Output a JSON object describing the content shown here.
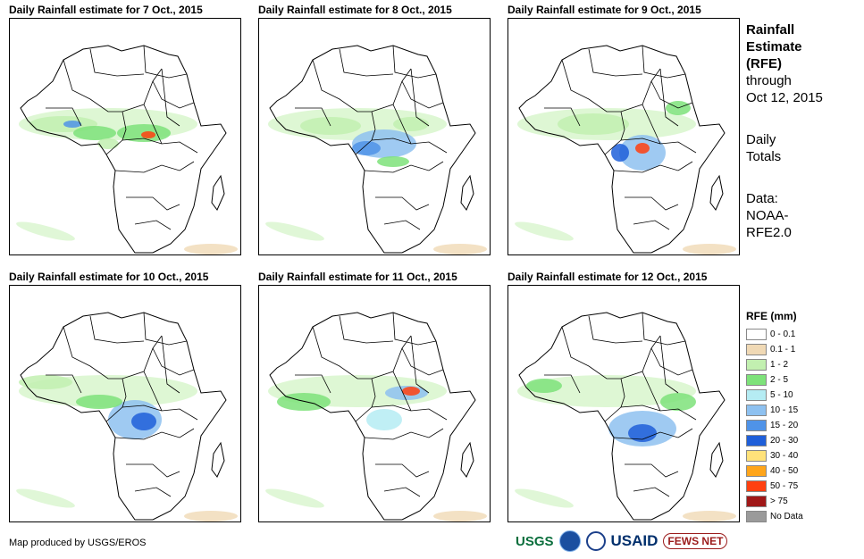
{
  "panels": [
    {
      "title": "Daily Rainfall estimate for 7 Oct., 2015"
    },
    {
      "title": "Daily Rainfall estimate for 8 Oct., 2015"
    },
    {
      "title": "Daily Rainfall estimate for 9 Oct., 2015"
    },
    {
      "title": "Daily Rainfall estimate for 10 Oct., 2015"
    },
    {
      "title": "Daily Rainfall estimate for 11 Oct., 2015"
    },
    {
      "title": "Daily Rainfall estimate for 12 Oct., 2015"
    }
  ],
  "side": {
    "heading_1": "Rainfall",
    "heading_2": "Estimate",
    "heading_3": "(RFE)",
    "through_1": "through",
    "through_2": "Oct 12, 2015",
    "daily_1": "Daily",
    "daily_2": "Totals",
    "data_1": "Data:",
    "data_2": "NOAA-",
    "data_3": "RFE2.0"
  },
  "legend": {
    "title": "RFE (mm)",
    "items": [
      {
        "label": "0 - 0.1",
        "color": "#ffffff"
      },
      {
        "label": "0.1 - 1",
        "color": "#f0d9b5"
      },
      {
        "label": "1 - 2",
        "color": "#c2f0b0"
      },
      {
        "label": "2 - 5",
        "color": "#7ee27a"
      },
      {
        "label": "5 - 10",
        "color": "#b5ecf3"
      },
      {
        "label": "10 - 15",
        "color": "#8ec1f0"
      },
      {
        "label": "15 - 20",
        "color": "#4f93e8"
      },
      {
        "label": "20 - 30",
        "color": "#1f5fd9"
      },
      {
        "label": "30 - 40",
        "color": "#ffe27a"
      },
      {
        "label": "40 - 50",
        "color": "#ffa51a"
      },
      {
        "label": "50 - 75",
        "color": "#ff4010"
      },
      {
        "label": "> 75",
        "color": "#a01818"
      },
      {
        "label": "No Data",
        "color": "#9a9a9a"
      }
    ]
  },
  "credit": "Map produced by USGS/EROS",
  "logos": {
    "usgs": "USGS",
    "usaid": "USAID",
    "fews": "FEWS NET"
  }
}
